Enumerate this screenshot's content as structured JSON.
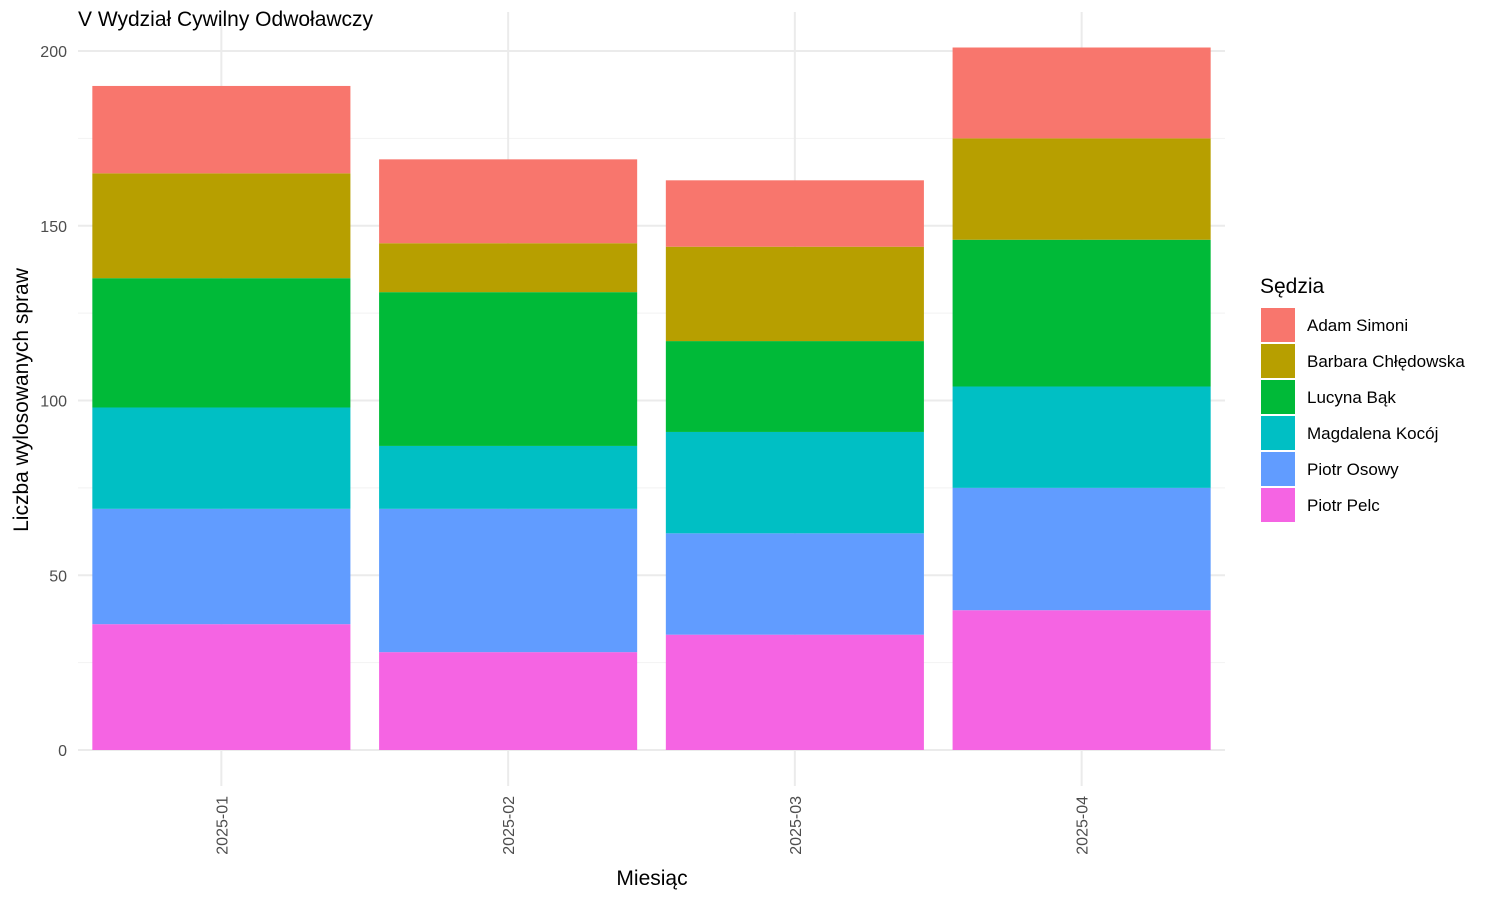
{
  "chart_data": {
    "type": "bar",
    "stacked": true,
    "title": "V Wydział Cywilny Odwoławczy",
    "xlabel": "Miesiąc",
    "ylabel": "Liczba wylosowanych spraw",
    "ylim": [
      0,
      210
    ],
    "yticks": [
      0,
      50,
      100,
      150,
      200
    ],
    "grid": true,
    "legend_title": "Sędzia",
    "legend_position": "right",
    "categories": [
      "2025-01",
      "2025-02",
      "2025-03",
      "2025-04"
    ],
    "series": [
      {
        "name": "Piotr Pelc",
        "color": "#F564E3",
        "values": [
          36,
          28,
          33,
          40
        ]
      },
      {
        "name": "Piotr Osowy",
        "color": "#619CFF",
        "values": [
          33,
          41,
          29,
          35
        ]
      },
      {
        "name": "Magdalena Kocój",
        "color": "#00BFC4",
        "values": [
          29,
          18,
          29,
          29
        ]
      },
      {
        "name": "Lucyna Bąk",
        "color": "#00BA38",
        "values": [
          37,
          44,
          26,
          42
        ]
      },
      {
        "name": "Barbara Chłędowska",
        "color": "#B79F00",
        "values": [
          30,
          14,
          27,
          29
        ]
      },
      {
        "name": "Adam Simoni",
        "color": "#F8766D",
        "values": [
          25,
          24,
          19,
          26
        ]
      }
    ],
    "legend_order": [
      "Adam Simoni",
      "Barbara Chłędowska",
      "Lucyna Bąk",
      "Magdalena Kocój",
      "Piotr Osowy",
      "Piotr Pelc"
    ]
  }
}
